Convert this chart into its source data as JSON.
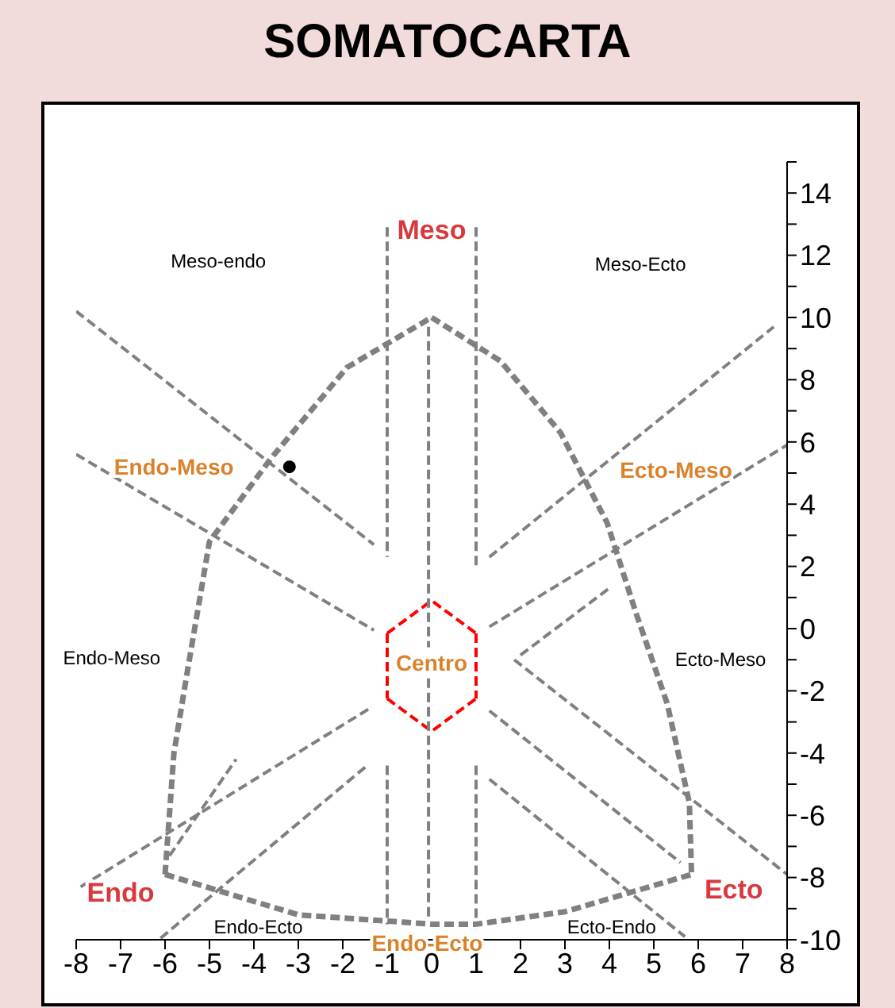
{
  "chart_data": {
    "type": "scatter",
    "title": "SOMATOCARTA",
    "xlim": [
      -8,
      8
    ],
    "xticks": [
      -8,
      -7,
      -6,
      -5,
      -4,
      -3,
      -2,
      -1,
      0,
      1,
      2,
      3,
      4,
      5,
      6,
      7,
      8
    ],
    "ylim": [
      -10,
      15
    ],
    "yticks": [
      -10,
      {
        "value": -9,
        "label": null
      },
      -8,
      {
        "value": -7,
        "label": null
      },
      -6,
      {
        "value": -5,
        "label": null
      },
      -4,
      {
        "value": -3,
        "label": null
      },
      -2,
      {
        "value": -1,
        "label": null
      },
      0,
      {
        "value": 1,
        "label": null
      },
      2,
      {
        "value": 3,
        "label": null
      },
      4,
      {
        "value": 5,
        "label": null
      },
      6,
      {
        "value": 7,
        "label": null
      },
      8,
      {
        "value": 9,
        "label": null
      },
      10,
      {
        "value": 11,
        "label": null
      },
      12,
      {
        "value": 13,
        "label": null
      },
      14,
      {
        "value": 15,
        "label": null
      }
    ],
    "grid": false,
    "series": [
      {
        "type": "line",
        "color": "#808080",
        "line_style": "dashed",
        "marker": "none",
        "x": [
          -6,
          -5.8,
          -5.5,
          -5,
          -3.6,
          -1.9,
          0
        ],
        "values": [
          -7.9,
          -4,
          -1.4,
          2.8,
          5.5,
          8.4,
          10
        ]
      },
      {
        "type": "line",
        "color": "#808080",
        "line_style": "dashed",
        "marker": "none",
        "x": [
          0,
          1.55,
          2.9,
          3.95,
          4.6,
          5.3,
          5.8,
          5.85
        ],
        "values": [
          10,
          8.6,
          6.3,
          3.4,
          0.5,
          -2.4,
          -5.6,
          -7.9
        ]
      },
      {
        "type": "line",
        "color": "#808080",
        "line_style": "dashed",
        "marker": "none",
        "x": [
          -6,
          -3,
          0,
          1,
          3,
          5.85
        ],
        "values": [
          -7.9,
          -9.2,
          -9.5,
          -9.5,
          -9.1,
          -7.9
        ]
      },
      {
        "type": "line",
        "color": "#808080",
        "line_style": "dashed",
        "marker": "none",
        "x": [
          -8,
          -1.3
        ],
        "values": [
          10.2,
          2.7
        ]
      },
      {
        "type": "line",
        "color": "#808080",
        "line_style": "dashed",
        "marker": "none",
        "x": [
          -8,
          -1.3
        ],
        "values": [
          5.6,
          -0.05
        ]
      },
      {
        "type": "line",
        "color": "#808080",
        "line_style": "dashed",
        "marker": "none",
        "x": [
          1.3,
          5.6
        ],
        "values": [
          -2.64,
          -7.52
        ]
      },
      {
        "type": "line",
        "color": "#808080",
        "line_style": "dashed",
        "marker": "none",
        "x": [
          1.3,
          5.7
        ],
        "values": [
          -4.84,
          -9.9
        ]
      },
      {
        "type": "line",
        "color": "#808080",
        "line_style": "dashed",
        "marker": "none",
        "x": [
          2,
          4
        ],
        "values": [
          -0.85,
          1.3
        ]
      },
      {
        "type": "line",
        "color": "#808080",
        "line_style": "dashed",
        "marker": "none",
        "x": [
          1.86,
          8
        ],
        "values": [
          -1,
          -7.9
        ]
      },
      {
        "type": "line",
        "color": "#808080",
        "line_style": "dashed",
        "marker": "none",
        "x": [
          -6.1,
          -1.45
        ],
        "values": [
          -9.95,
          -4.4
        ]
      },
      {
        "type": "line",
        "color": "#808080",
        "line_style": "dashed",
        "marker": "none",
        "x": [
          -7.9,
          -1.4
        ],
        "values": [
          -8.3,
          -2.57
        ]
      },
      {
        "type": "line",
        "color": "#808080",
        "line_style": "dashed",
        "marker": "none",
        "x": [
          -5.9,
          -4.4
        ],
        "values": [
          -7.3,
          -4.2
        ]
      },
      {
        "type": "line",
        "color": "#808080",
        "line_style": "dashed",
        "marker": "none",
        "x": [
          1.3,
          7.7
        ],
        "values": [
          2.3,
          9.7
        ]
      },
      {
        "type": "line",
        "color": "#808080",
        "line_style": "dashed",
        "marker": "none",
        "x": [
          1.3,
          8
        ],
        "values": [
          0.06,
          5.9
        ]
      },
      {
        "type": "line",
        "color": "#ff0000",
        "line_style": "dashed",
        "marker": "none",
        "x": [
          -1,
          0,
          1
        ],
        "values": [
          -0.15,
          0.9,
          -0.15
        ]
      },
      {
        "type": "line",
        "color": "#ff0000",
        "line_style": "dashed",
        "marker": "none",
        "x": [
          -1,
          0,
          1
        ],
        "values": [
          -2.25,
          -3.3,
          -2.25
        ]
      },
      {
        "type": "line",
        "color": "#ff0000",
        "line_style": "dashed",
        "marker": "none",
        "x": [
          -1,
          -1
        ],
        "values": [
          -0.15,
          -2.25
        ]
      },
      {
        "type": "line",
        "color": "#ff0000",
        "line_style": "dashed",
        "marker": "none",
        "x": [
          1,
          1
        ],
        "values": [
          -0.15,
          -2.25
        ]
      },
      {
        "type": "line",
        "color": "#808080",
        "line_style": "dashed",
        "marker": "none",
        "x": [
          -1,
          -1
        ],
        "values": [
          12.9,
          2.3
        ]
      },
      {
        "type": "line",
        "color": "#808080",
        "line_style": "dashed",
        "marker": "none",
        "x": [
          1,
          1
        ],
        "values": [
          12.9,
          1.9
        ]
      },
      {
        "type": "line",
        "color": "#808080",
        "line_style": "dashed",
        "marker": "none",
        "x": [
          -1,
          -1
        ],
        "values": [
          -4.4,
          -9.5
        ]
      },
      {
        "type": "line",
        "color": "#808080",
        "line_style": "dashed",
        "marker": "none",
        "x": [
          1,
          1
        ],
        "values": [
          -4.4,
          -9.5
        ]
      },
      {
        "type": "line",
        "color": "#808080",
        "line_style": "dashed",
        "marker": "none",
        "x": [
          -0.07,
          -0.07
        ],
        "values": [
          9.7,
          -0.6
        ]
      },
      {
        "type": "line",
        "color": "#808080",
        "line_style": "dashed",
        "marker": "none",
        "x": [
          -0.07,
          -0.07
        ],
        "values": [
          -1.6,
          -9.3
        ]
      },
      {
        "type": "scatter",
        "color": "#000000",
        "marker": "circle",
        "x": [
          -3.2
        ],
        "values": [
          5.2
        ]
      }
    ],
    "annotations": [
      "Meso",
      "Endo",
      "Ecto",
      "Endo-Meso",
      "Ecto-Meso",
      "Centro",
      "Endo-Ecto",
      "Meso-endo",
      "Meso-Ecto",
      "Endo-Meso",
      "Ecto-Meso",
      "Endo-Ecto",
      "Ecto-Endo"
    ]
  }
}
